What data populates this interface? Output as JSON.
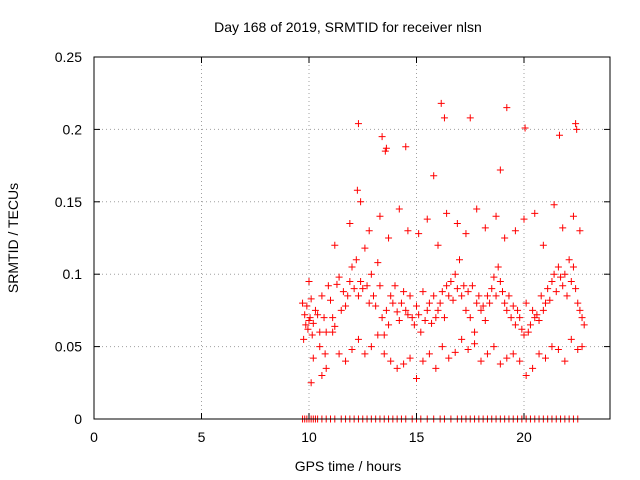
{
  "chart_data": {
    "type": "scatter",
    "title": "Day 168 of 2019, SRMTID for receiver nlsn",
    "xlabel": "GPS time / hours",
    "ylabel": "SRMTID / TECUs",
    "xlim": [
      0,
      24
    ],
    "ylim": [
      0,
      0.25
    ],
    "xticks": [
      0,
      5,
      10,
      15,
      20
    ],
    "xtick_labels": [
      "0",
      "5",
      "10",
      "15",
      "20"
    ],
    "yticks": [
      0,
      0.05,
      0.1,
      0.15,
      0.2,
      0.25
    ],
    "ytick_labels": [
      "0",
      "0.05",
      "0.1",
      "0.15",
      "0.2",
      "0.25"
    ],
    "grid": true,
    "marker": "+",
    "series": [
      {
        "name": "SRMTID",
        "color": "#ff0000",
        "x": [
          9.7,
          9.75,
          9.8,
          9.85,
          9.9,
          9.95,
          10.0,
          10.05,
          10.1,
          10.15,
          10.2,
          10.3,
          10.4,
          10.5,
          10.6,
          10.7,
          10.75,
          10.8,
          10.9,
          11.0,
          11.1,
          11.2,
          11.3,
          11.4,
          11.5,
          11.6,
          11.7,
          11.8,
          11.9,
          12.0,
          12.1,
          12.2,
          12.3,
          12.4,
          12.5,
          12.6,
          12.7,
          12.8,
          12.9,
          13.0,
          13.1,
          13.2,
          13.3,
          13.4,
          13.5,
          13.6,
          13.7,
          13.8,
          13.9,
          14.0,
          14.1,
          14.2,
          14.3,
          14.4,
          14.5,
          14.6,
          14.7,
          14.8,
          14.9,
          15.0,
          15.1,
          15.2,
          15.3,
          15.4,
          15.5,
          15.6,
          15.7,
          15.8,
          15.9,
          16.0,
          16.1,
          16.2,
          16.3,
          16.4,
          16.5,
          16.6,
          16.7,
          16.8,
          16.9,
          17.0,
          17.1,
          17.2,
          17.3,
          17.4,
          17.5,
          17.6,
          17.7,
          17.8,
          17.9,
          18.0,
          18.1,
          18.2,
          18.3,
          18.4,
          18.5,
          18.6,
          18.7,
          18.8,
          18.9,
          19.0,
          19.1,
          19.2,
          19.3,
          19.4,
          19.5,
          19.6,
          19.7,
          19.8,
          19.9,
          20.0,
          20.1,
          20.2,
          20.3,
          20.4,
          20.5,
          20.6,
          20.7,
          20.8,
          20.9,
          21.0,
          21.1,
          21.2,
          21.3,
          21.4,
          21.5,
          21.6,
          21.7,
          21.8,
          21.9,
          22.0,
          22.1,
          22.2,
          22.3,
          22.4,
          22.5,
          22.6,
          22.7,
          22.8,
          10.0,
          10.2,
          10.5,
          10.8,
          11.1,
          11.4,
          11.7,
          12.0,
          12.3,
          12.6,
          12.9,
          13.2,
          13.5,
          13.8,
          14.1,
          14.4,
          14.7,
          15.0,
          15.3,
          15.6,
          15.9,
          16.2,
          16.5,
          16.8,
          17.1,
          17.4,
          17.7,
          18.0,
          18.3,
          18.6,
          18.9,
          19.2,
          19.5,
          19.8,
          20.1,
          20.4,
          20.7,
          21.0,
          21.3,
          21.6,
          21.9,
          22.2,
          22.5,
          22.7,
          10.1,
          10.6,
          11.2,
          11.9,
          12.4,
          12.8,
          13.3,
          13.7,
          14.2,
          14.6,
          15.1,
          15.5,
          16.0,
          16.4,
          16.9,
          17.3,
          17.8,
          18.2,
          18.7,
          19.1,
          19.6,
          20.0,
          20.5,
          20.9,
          21.4,
          21.8,
          22.3,
          22.6,
          12.25,
          12.3,
          13.4,
          13.55,
          14.5,
          16.15,
          16.3,
          17.5,
          19.2,
          20.05,
          21.65,
          22.4,
          22.45,
          13.6,
          18.9,
          15.8
        ],
        "y": [
          0.08,
          0.055,
          0.072,
          0.065,
          0.078,
          0.062,
          0.068,
          0.07,
          0.083,
          0.058,
          0.066,
          0.075,
          0.072,
          0.06,
          0.085,
          0.07,
          0.045,
          0.06,
          0.092,
          0.082,
          0.07,
          0.064,
          0.093,
          0.098,
          0.075,
          0.088,
          0.078,
          0.085,
          0.095,
          0.105,
          0.09,
          0.11,
          0.085,
          0.095,
          0.09,
          0.118,
          0.092,
          0.08,
          0.1,
          0.085,
          0.078,
          0.108,
          0.092,
          0.07,
          0.058,
          0.075,
          0.065,
          0.085,
          0.08,
          0.092,
          0.074,
          0.068,
          0.08,
          0.088,
          0.075,
          0.072,
          0.085,
          0.07,
          0.065,
          0.078,
          0.072,
          0.06,
          0.088,
          0.068,
          0.075,
          0.08,
          0.066,
          0.085,
          0.07,
          0.075,
          0.08,
          0.088,
          0.07,
          0.092,
          0.085,
          0.095,
          0.082,
          0.1,
          0.09,
          0.11,
          0.085,
          0.092,
          0.075,
          0.088,
          0.07,
          0.092,
          0.06,
          0.08,
          0.085,
          0.075,
          0.078,
          0.068,
          0.085,
          0.08,
          0.09,
          0.098,
          0.085,
          0.105,
          0.095,
          0.088,
          0.08,
          0.075,
          0.085,
          0.07,
          0.078,
          0.065,
          0.075,
          0.07,
          0.062,
          0.058,
          0.08,
          0.06,
          0.065,
          0.075,
          0.07,
          0.072,
          0.068,
          0.085,
          0.075,
          0.08,
          0.09,
          0.082,
          0.095,
          0.1,
          0.088,
          0.105,
          0.098,
          0.092,
          0.1,
          0.085,
          0.11,
          0.095,
          0.105,
          0.09,
          0.08,
          0.075,
          0.07,
          0.065,
          0.095,
          0.042,
          0.05,
          0.035,
          0.06,
          0.045,
          0.04,
          0.048,
          0.055,
          0.045,
          0.05,
          0.058,
          0.045,
          0.04,
          0.035,
          0.038,
          0.042,
          0.028,
          0.04,
          0.045,
          0.035,
          0.05,
          0.042,
          0.046,
          0.055,
          0.048,
          0.052,
          0.04,
          0.045,
          0.05,
          0.038,
          0.042,
          0.045,
          0.04,
          0.03,
          0.035,
          0.045,
          0.042,
          0.05,
          0.048,
          0.04,
          0.055,
          0.048,
          0.05,
          0.025,
          0.03,
          0.12,
          0.135,
          0.15,
          0.13,
          0.14,
          0.125,
          0.145,
          0.13,
          0.128,
          0.138,
          0.12,
          0.142,
          0.135,
          0.128,
          0.145,
          0.132,
          0.14,
          0.125,
          0.13,
          0.138,
          0.142,
          0.12,
          0.148,
          0.132,
          0.14,
          0.13,
          0.158,
          0.204,
          0.195,
          0.185,
          0.188,
          0.218,
          0.208,
          0.208,
          0.215,
          0.201,
          0.196,
          0.204,
          0.2,
          0.187,
          0.172,
          0.168
        ],
        "zero_x": [
          9.7,
          9.8,
          9.9,
          10.0,
          10.1,
          10.2,
          10.3,
          10.4,
          10.6,
          10.8,
          11.0,
          11.2,
          11.5,
          11.7,
          11.9,
          12.1,
          12.3,
          12.5,
          12.7,
          12.9,
          13.1,
          13.3,
          13.5,
          13.7,
          13.9,
          14.1,
          14.3,
          14.5,
          14.8,
          15.0,
          15.2,
          15.5,
          15.8,
          16.1,
          16.3,
          16.6,
          16.9,
          17.1,
          17.3,
          17.5,
          17.7,
          17.9,
          18.1,
          18.3,
          18.5,
          18.7,
          18.9,
          19.1,
          19.3,
          19.5,
          19.7,
          19.9,
          20.1,
          20.3,
          20.5,
          20.7,
          20.9,
          21.1,
          21.3,
          21.5,
          21.7,
          21.9,
          22.1,
          22.3,
          22.5
        ]
      }
    ]
  }
}
